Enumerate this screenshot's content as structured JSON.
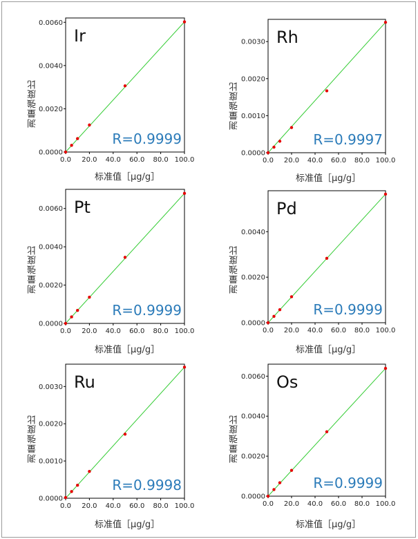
{
  "charts": [
    {
      "element": "Ir",
      "r_label": "R=0.9999"
    },
    {
      "element": "Rh",
      "r_label": "R=0.9997"
    },
    {
      "element": "Pt",
      "r_label": "R=0.9999"
    },
    {
      "element": "Pd",
      "r_label": "R=0.9999"
    },
    {
      "element": "Ru",
      "r_label": "R=0.9998"
    },
    {
      "element": "Os",
      "r_label": "R=0.9999"
    }
  ],
  "axis_labels": {
    "ylabel": "測量強度比",
    "xlabel": "标准值［µg/g］"
  },
  "colors": {
    "line": "#33cc33",
    "point": "#e60000",
    "r_text": "#2b7bb9",
    "axis": "#000000"
  },
  "chart_data": [
    {
      "type": "scatter",
      "title": "Ir",
      "xlabel": "标准值［µg/g］",
      "ylabel": "測量強度比",
      "annotation": "R=0.9999",
      "xlim": [
        0,
        100
      ],
      "ylim": [
        0,
        0.0062
      ],
      "xticks": [
        "0.0",
        "20.0",
        "40.0",
        "60.0",
        "80.0",
        "100.0"
      ],
      "yticks": [
        "0.0000",
        "0.0020",
        "0.0040",
        "0.0060"
      ],
      "ytick_values": [
        0,
        0.002,
        0.004,
        0.006
      ],
      "x": [
        0,
        5,
        10,
        20,
        50,
        100
      ],
      "y": [
        0.0,
        0.00031,
        0.00062,
        0.00125,
        0.00306,
        0.00602
      ],
      "fit": {
        "x": [
          0,
          100
        ],
        "y": [
          0.0,
          0.00602
        ]
      }
    },
    {
      "type": "scatter",
      "title": "Rh",
      "xlabel": "标准值［µg/g］",
      "ylabel": "測量強度比",
      "annotation": "R=0.9997",
      "xlim": [
        0,
        100
      ],
      "ylim": [
        0,
        0.0036
      ],
      "xticks": [
        "0.0",
        "20.0",
        "40.0",
        "60.0",
        "80.0",
        "100.0"
      ],
      "yticks": [
        "0.0000",
        "0.0010",
        "0.0020",
        "0.0030"
      ],
      "ytick_values": [
        0,
        0.001,
        0.002,
        0.003
      ],
      "x": [
        0,
        5,
        10,
        20,
        50,
        100
      ],
      "y": [
        0.0,
        0.00015,
        0.00031,
        0.00068,
        0.00167,
        0.00352
      ],
      "fit": {
        "x": [
          0,
          100
        ],
        "y": [
          0.0,
          0.00352
        ]
      }
    },
    {
      "type": "scatter",
      "title": "Pt",
      "xlabel": "标准值［µg/g］",
      "ylabel": "測量強度比",
      "annotation": "R=0.9999",
      "xlim": [
        0,
        100
      ],
      "ylim": [
        0,
        0.007
      ],
      "xticks": [
        "0.0",
        "20.0",
        "40.0",
        "60.0",
        "80.0",
        "100.0"
      ],
      "yticks": [
        "0.0000",
        "0.0020",
        "0.0040",
        "0.0060"
      ],
      "ytick_values": [
        0,
        0.002,
        0.004,
        0.006
      ],
      "x": [
        0,
        5,
        10,
        20,
        50,
        100
      ],
      "y": [
        0.0,
        0.00034,
        0.00068,
        0.00137,
        0.00345,
        0.00679
      ],
      "fit": {
        "x": [
          0,
          100
        ],
        "y": [
          0.0,
          0.00679
        ]
      }
    },
    {
      "type": "scatter",
      "title": "Pd",
      "xlabel": "标准值［µg/g］",
      "ylabel": "測量強度比",
      "annotation": "R=0.9999",
      "xlim": [
        0,
        100
      ],
      "ylim": [
        0,
        0.0058
      ],
      "xticks": [
        "0.0",
        "20.0",
        "40.0",
        "60.0",
        "80.0",
        "100.0"
      ],
      "yticks": [
        "0.0000",
        "0.0020",
        "0.0040"
      ],
      "ytick_values": [
        0,
        0.002,
        0.004
      ],
      "x": [
        0,
        5,
        10,
        20,
        50,
        100
      ],
      "y": [
        0.0,
        0.00028,
        0.00057,
        0.00114,
        0.00283,
        0.00565
      ],
      "fit": {
        "x": [
          0,
          100
        ],
        "y": [
          0.0,
          0.00565
        ]
      }
    },
    {
      "type": "scatter",
      "title": "Ru",
      "xlabel": "标准值［µg/g］",
      "ylabel": "測量強度比",
      "annotation": "R=0.9998",
      "xlim": [
        0,
        100
      ],
      "ylim": [
        0,
        0.0036
      ],
      "xticks": [
        "0.0",
        "20.0",
        "40.0",
        "60.0",
        "80.0",
        "100.0"
      ],
      "yticks": [
        "0.0000",
        "0.0010",
        "0.0020",
        "0.0030"
      ],
      "ytick_values": [
        0,
        0.001,
        0.002,
        0.003
      ],
      "x": [
        0,
        5,
        10,
        20,
        50,
        100
      ],
      "y": [
        2e-05,
        0.00018,
        0.00035,
        0.00072,
        0.00172,
        0.00352
      ],
      "fit": {
        "x": [
          0,
          100
        ],
        "y": [
          0.0,
          0.00352
        ]
      }
    },
    {
      "type": "scatter",
      "title": "Os",
      "xlabel": "标准值［µg/g］",
      "ylabel": "測量強度比",
      "annotation": "R=0.9999",
      "xlim": [
        0,
        100
      ],
      "ylim": [
        0,
        0.0066
      ],
      "xticks": [
        "0.0",
        "20.0",
        "40.0",
        "60.0",
        "80.0",
        "100.0"
      ],
      "yticks": [
        "0.0000",
        "0.0020",
        "0.0040",
        "0.0060"
      ],
      "ytick_values": [
        0,
        0.002,
        0.004,
        0.006
      ],
      "x": [
        0,
        5,
        10,
        20,
        50,
        100
      ],
      "y": [
        0.0,
        0.00033,
        0.00067,
        0.00129,
        0.00322,
        0.00639
      ],
      "fit": {
        "x": [
          0,
          100
        ],
        "y": [
          0.0,
          0.00639
        ]
      }
    }
  ]
}
